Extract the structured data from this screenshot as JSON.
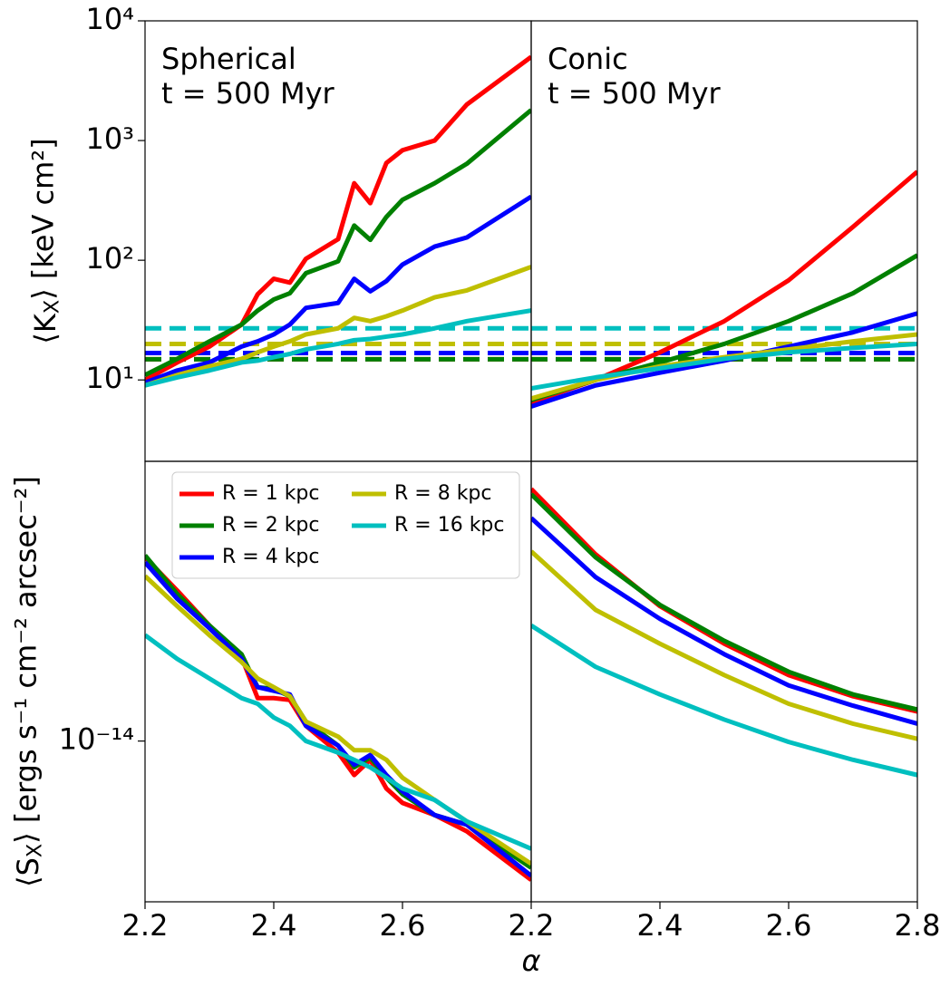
{
  "chart_data": [
    {
      "type": "line",
      "yscale": "log",
      "ylim": [
        2.09,
        10000
      ],
      "yticks": [
        {
          "value": 10,
          "label": "10¹"
        },
        {
          "value": 100,
          "label": "10²"
        },
        {
          "value": 1000,
          "label": "10³"
        },
        {
          "value": 10000,
          "label": "10⁴"
        }
      ],
      "xlim": [
        2.2,
        2.8
      ],
      "ylabel": "⟨K_X⟩ [keV cm²]",
      "annotations": [
        "Spherical",
        "t = 500 Myr"
      ],
      "x": [
        2.2,
        2.25,
        2.3,
        2.35,
        2.375,
        2.4,
        2.425,
        2.45,
        2.5,
        2.525,
        2.55,
        2.575,
        2.6,
        2.65,
        2.7,
        2.8
      ],
      "series": [
        {
          "color": "#ff0000",
          "values": [
            10,
            14,
            19,
            29,
            52,
            70,
            65,
            103,
            150,
            440,
            300,
            650,
            830,
            1000,
            2000,
            5000
          ]
        },
        {
          "color": "#008000",
          "values": [
            11,
            15,
            21,
            29,
            38,
            47,
            53,
            78,
            98,
            195,
            148,
            230,
            320,
            440,
            640,
            1800
          ]
        },
        {
          "color": "#0000ff",
          "values": [
            9.5,
            12,
            14,
            19,
            21,
            24,
            29,
            40,
            44,
            70,
            55,
            67,
            92,
            130,
            155,
            340
          ]
        },
        {
          "color": "#bfbf00",
          "values": [
            9,
            11,
            13,
            15,
            17,
            19,
            21,
            24,
            27,
            33,
            31,
            34,
            38,
            49,
            56,
            88
          ]
        },
        {
          "color": "#00bfbf",
          "values": [
            9,
            10.5,
            12,
            14,
            14.5,
            15.5,
            16.5,
            18,
            20,
            21.5,
            22,
            23,
            24,
            27,
            31,
            38
          ]
        }
      ],
      "hlines": [
        {
          "color": "#00bfbf",
          "value": 27
        },
        {
          "color": "#bfbf00",
          "value": 20
        },
        {
          "color": "#0000ff",
          "value": 16.8
        },
        {
          "color": "#ff0000",
          "value": 14.9
        },
        {
          "color": "#008000",
          "value": 14.9
        }
      ]
    },
    {
      "type": "line",
      "yscale": "log",
      "ylim": [
        2.09,
        10000
      ],
      "xlim": [
        2.2,
        2.8
      ],
      "annotations": [
        "Conic",
        "t = 500 Myr"
      ],
      "x": [
        2.2,
        2.3,
        2.4,
        2.5,
        2.6,
        2.7,
        2.8
      ],
      "series": [
        {
          "color": "#ff0000",
          "values": [
            6.5,
            10,
            17,
            31,
            68,
            190,
            550
          ]
        },
        {
          "color": "#008000",
          "values": [
            6.8,
            10,
            14,
            20,
            31,
            53,
            110
          ]
        },
        {
          "color": "#0000ff",
          "values": [
            6,
            9,
            11.5,
            14.5,
            19,
            25,
            36
          ]
        },
        {
          "color": "#bfbf00",
          "values": [
            7,
            10,
            13,
            15.5,
            18,
            21,
            24
          ]
        },
        {
          "color": "#00bfbf",
          "values": [
            8.5,
            10.5,
            12.5,
            15,
            17,
            18.5,
            20
          ]
        }
      ],
      "hlines": [
        {
          "color": "#00bfbf",
          "value": 27
        },
        {
          "color": "#bfbf00",
          "value": 20
        },
        {
          "color": "#0000ff",
          "value": 16.8
        },
        {
          "color": "#ff0000",
          "value": 14.9
        },
        {
          "color": "#008000",
          "value": 14.9
        }
      ]
    },
    {
      "type": "line",
      "yscale": "log",
      "ylim": [
        4.9e-15,
        3.46e-14
      ],
      "yticks": [
        {
          "value": 1e-14,
          "label": "10⁻¹⁴"
        }
      ],
      "xlim": [
        2.2,
        2.8
      ],
      "xticks": [
        2.2,
        2.4,
        2.6
      ],
      "xlabel": "α",
      "ylabel": "⟨S_X⟩ [ergs s⁻¹ cm⁻² arcsec⁻²]",
      "legend": "upper left",
      "legend_columns": 2,
      "x": [
        2.2,
        2.25,
        2.3,
        2.35,
        2.375,
        2.4,
        2.425,
        2.45,
        2.5,
        2.525,
        2.55,
        2.575,
        2.6,
        2.65,
        2.7,
        2.8
      ],
      "series": [
        {
          "name": "R = 1 kpc",
          "color": "#ff0000",
          "values": [
            2.26e-14,
            1.95e-14,
            1.67e-14,
            1.45e-14,
            1.21e-14,
            1.21e-14,
            1.2e-14,
            1.07e-14,
            9.5e-15,
            8.6e-15,
            9.2e-15,
            8.1e-15,
            7.6e-15,
            7.2e-15,
            6.7e-15,
            5.4e-15
          ]
        },
        {
          "name": "R = 2 kpc",
          "color": "#008000",
          "values": [
            2.28e-14,
            1.92e-14,
            1.67e-14,
            1.47e-14,
            1.27e-14,
            1.26e-14,
            1.22e-14,
            1.09e-14,
            9.8e-15,
            8.9e-15,
            9.3e-15,
            8.5e-15,
            7.9e-15,
            7.2e-15,
            6.9e-15,
            5.7e-15
          ]
        },
        {
          "name": "R = 4 kpc",
          "color": "#0000ff",
          "values": [
            2.21e-14,
            1.88e-14,
            1.65e-14,
            1.44e-14,
            1.27e-14,
            1.25e-14,
            1.23e-14,
            1.07e-14,
            9.8e-15,
            9e-15,
            9.4e-15,
            8.6e-15,
            8e-15,
            7.2e-15,
            6.9e-15,
            5.5e-15
          ]
        },
        {
          "name": "R = 8 kpc",
          "color": "#bfbf00",
          "values": [
            2.08e-14,
            1.82e-14,
            1.6e-14,
            1.42e-14,
            1.32e-14,
            1.27e-14,
            1.22e-14,
            1.09e-14,
            1.02e-14,
            9.6e-15,
            9.6e-15,
            9.2e-15,
            8.5e-15,
            7.7e-15,
            7e-15,
            5.8e-15
          ]
        },
        {
          "name": "R = 16 kpc",
          "color": "#00bfbf",
          "values": [
            1.6e-14,
            1.44e-14,
            1.32e-14,
            1.21e-14,
            1.18e-14,
            1.11e-14,
            1.07e-14,
            1e-14,
            9.5e-15,
            9.2e-15,
            8.9e-15,
            8.5e-15,
            8.1e-15,
            7.7e-15,
            7e-15,
            6.2e-15
          ]
        }
      ]
    },
    {
      "type": "line",
      "yscale": "log",
      "ylim": [
        4.9e-15,
        3.46e-14
      ],
      "xlim": [
        2.2,
        2.8
      ],
      "xticks": [
        2.2,
        2.4,
        2.6,
        2.8
      ],
      "x": [
        2.2,
        2.3,
        2.4,
        2.5,
        2.6,
        2.7,
        2.8
      ],
      "series": [
        {
          "color": "#ff0000",
          "values": [
            3.06e-14,
            2.29e-14,
            1.82e-14,
            1.54e-14,
            1.34e-14,
            1.22e-14,
            1.14e-14
          ]
        },
        {
          "color": "#008000",
          "values": [
            2.99e-14,
            2.26e-14,
            1.83e-14,
            1.56e-14,
            1.36e-14,
            1.23e-14,
            1.15e-14
          ]
        },
        {
          "color": "#0000ff",
          "values": [
            2.69e-14,
            2.07e-14,
            1.72e-14,
            1.47e-14,
            1.28e-14,
            1.17e-14,
            1.08e-14
          ]
        },
        {
          "color": "#bfbf00",
          "values": [
            2.32e-14,
            1.79e-14,
            1.54e-14,
            1.34e-14,
            1.18e-14,
            1.08e-14,
            1.01e-14
          ]
        },
        {
          "color": "#00bfbf",
          "values": [
            1.67e-14,
            1.39e-14,
            1.23e-14,
            1.1e-14,
            9.96e-15,
            9.2e-15,
            8.6e-15
          ]
        }
      ]
    }
  ]
}
